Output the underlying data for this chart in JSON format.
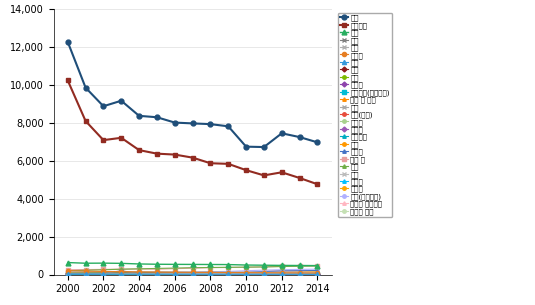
{
  "years": [
    2000,
    2001,
    2002,
    2003,
    2004,
    2005,
    2006,
    2007,
    2008,
    2009,
    2010,
    2011,
    2012,
    2013,
    2014
  ],
  "series": {
    "합계": {
      "values": [
        12268,
        9857,
        8878,
        9168,
        8371,
        8297,
        8015,
        7972,
        7934,
        7818,
        6745,
        6724,
        7450,
        7250,
        6973
      ],
      "color": "#1f4e79",
      "marker": "o",
      "linewidth": 1.5,
      "markersize": 3.5,
      "zorder": 10
    },
    "도로교통": {
      "values": [
        10236,
        8097,
        7090,
        7212,
        6563,
        6376,
        6327,
        6166,
        5870,
        5838,
        5505,
        5229,
        5392,
        5092,
        4762
      ],
      "color": "#922b21",
      "marker": "s",
      "linewidth": 1.5,
      "markersize": 3.5,
      "zorder": 9
    },
    "화재": {
      "values": [
        630,
        595,
        600,
        588,
        556,
        541,
        535,
        532,
        528,
        524,
        500,
        490,
        480,
        475,
        470
      ],
      "color": "#27ae60",
      "marker": "^",
      "linewidth": 1.0,
      "markersize": 3.5,
      "zorder": 8
    },
    "산불": {
      "values": [
        50,
        45,
        48,
        200,
        50,
        45,
        40,
        38,
        35,
        30,
        28,
        25,
        22,
        20,
        18
      ],
      "color": "#808080",
      "marker": "x",
      "linewidth": 0.8,
      "markersize": 3,
      "zorder": 7
    },
    "열차": {
      "values": [
        80,
        75,
        70,
        65,
        62,
        58,
        55,
        52,
        50,
        48,
        45,
        42,
        40,
        38,
        35
      ],
      "color": "#b0b0b0",
      "marker": "x",
      "linewidth": 0.8,
      "markersize": 3,
      "zorder": 7
    },
    "지하철": {
      "values": [
        200,
        180,
        160,
        150,
        140,
        130,
        120,
        115,
        110,
        105,
        100,
        95,
        90,
        85,
        80
      ],
      "color": "#e67e22",
      "marker": "o",
      "linewidth": 0.8,
      "markersize": 3,
      "zorder": 7
    },
    "폭발": {
      "values": [
        30,
        28,
        25,
        22,
        20,
        18,
        16,
        15,
        14,
        12,
        11,
        10,
        9,
        8,
        7
      ],
      "color": "#3498db",
      "marker": "^",
      "linewidth": 0.8,
      "markersize": 3,
      "zorder": 7
    },
    "해양": {
      "values": [
        100,
        90,
        85,
        80,
        75,
        70,
        65,
        60,
        55,
        50,
        48,
        45,
        42,
        40,
        38
      ],
      "color": "#8b1a1a",
      "marker": "D",
      "linewidth": 0.8,
      "markersize": 2.5,
      "zorder": 6
    },
    "가스": {
      "values": [
        90,
        85,
        80,
        75,
        70,
        65,
        60,
        55,
        50,
        48,
        45,
        42,
        40,
        38,
        36
      ],
      "color": "#7dbb00",
      "marker": "o",
      "linewidth": 0.8,
      "markersize": 2.5,
      "zorder": 6
    },
    "유도선": {
      "values": [
        20,
        18,
        16,
        15,
        14,
        13,
        12,
        11,
        10,
        9,
        8,
        8,
        7,
        7,
        6
      ],
      "color": "#8e44ad",
      "marker": "D",
      "linewidth": 0.8,
      "markersize": 2.5,
      "zorder": 6
    },
    "환경오염(기름유출)": {
      "values": [
        15,
        12,
        10,
        8,
        6,
        5,
        4,
        4,
        3,
        3,
        2,
        2,
        2,
        2,
        2
      ],
      "color": "#00bcd4",
      "marker": "s",
      "linewidth": 0.8,
      "markersize": 2.5,
      "zorder": 6
    },
    "공단 내 시설": {
      "values": [
        60,
        55,
        50,
        48,
        45,
        42,
        40,
        38,
        35,
        32,
        30,
        28,
        26,
        24,
        22
      ],
      "color": "#ff8c00",
      "marker": "^",
      "linewidth": 0.8,
      "markersize": 2.5,
      "zorder": 6
    },
    "광산": {
      "values": [
        25,
        22,
        20,
        18,
        16,
        15,
        14,
        13,
        12,
        11,
        10,
        9,
        8,
        7,
        6
      ],
      "color": "#aaaaaa",
      "marker": "x",
      "linewidth": 0.8,
      "markersize": 2.5,
      "zorder": 5
    },
    "전기(감전)": {
      "values": [
        55,
        52,
        50,
        48,
        46,
        44,
        42,
        40,
        38,
        36,
        34,
        32,
        30,
        28,
        26
      ],
      "color": "#e74c3c",
      "marker": "o",
      "linewidth": 0.8,
      "markersize": 2.5,
      "zorder": 5
    },
    "승강기": {
      "values": [
        10,
        9,
        8,
        7,
        7,
        6,
        6,
        5,
        5,
        4,
        4,
        4,
        3,
        3,
        3
      ],
      "color": "#a9d18e",
      "marker": "o",
      "linewidth": 0.8,
      "markersize": 2.5,
      "zorder": 5
    },
    "보일러": {
      "values": [
        8,
        7,
        6,
        6,
        5,
        5,
        5,
        4,
        4,
        4,
        3,
        3,
        3,
        2,
        2
      ],
      "color": "#9b59b6",
      "marker": "D",
      "linewidth": 0.8,
      "markersize": 2.5,
      "zorder": 5
    },
    "헬리콥기": {
      "values": [
        5,
        5,
        4,
        4,
        4,
        4,
        3,
        3,
        3,
        3,
        2,
        2,
        2,
        2,
        2
      ],
      "color": "#00acc1",
      "marker": "^",
      "linewidth": 0.8,
      "markersize": 2.5,
      "zorder": 5
    },
    "붕괴": {
      "values": [
        30,
        28,
        25,
        22,
        20,
        18,
        17,
        15,
        14,
        12,
        11,
        10,
        9,
        8,
        7
      ],
      "color": "#ff9800",
      "marker": "o",
      "linewidth": 0.8,
      "markersize": 2.5,
      "zorder": 5
    },
    "물놀이": {
      "values": [
        120,
        115,
        110,
        105,
        100,
        120,
        115,
        100,
        125,
        110,
        115,
        155,
        190,
        200,
        210
      ],
      "color": "#4472c4",
      "marker": "^",
      "linewidth": 0.8,
      "markersize": 2.5,
      "zorder": 5
    },
    "익사 동": {
      "values": [
        250,
        260,
        270,
        280,
        290,
        280,
        310,
        330,
        360,
        370,
        380,
        400,
        430,
        450,
        460
      ],
      "color": "#e8a0a0",
      "marker": "s",
      "linewidth": 0.8,
      "markersize": 2.5,
      "zorder": 5
    },
    "등산": {
      "values": [
        200,
        220,
        250,
        280,
        300,
        320,
        340,
        360,
        370,
        380,
        390,
        400,
        420,
        440,
        450
      ],
      "color": "#70ad47",
      "marker": "^",
      "linewidth": 0.8,
      "markersize": 2.5,
      "zorder": 5
    },
    "추락": {
      "values": [
        150,
        155,
        160,
        155,
        150,
        145,
        140,
        135,
        130,
        125,
        120,
        115,
        110,
        105,
        100
      ],
      "color": "#bdbdbd",
      "marker": "x",
      "linewidth": 0.8,
      "markersize": 2.5,
      "zorder": 5
    },
    "농기계": {
      "values": [
        80,
        78,
        75,
        72,
        70,
        68,
        65,
        62,
        60,
        58,
        55,
        52,
        50,
        48,
        46
      ],
      "color": "#00bfff",
      "marker": "^",
      "linewidth": 0.8,
      "markersize": 2.5,
      "zorder": 4
    },
    "자전거": {
      "values": [
        30,
        35,
        40,
        50,
        60,
        70,
        80,
        90,
        100,
        110,
        120,
        130,
        135,
        140,
        145
      ],
      "color": "#ffa500",
      "marker": "o",
      "linewidth": 0.8,
      "markersize": 2.5,
      "zorder": 4
    },
    "레저(생활체육)": {
      "values": [
        40,
        45,
        50,
        60,
        80,
        100,
        120,
        140,
        150,
        160,
        200,
        230,
        250,
        270,
        280
      ],
      "color": "#b0b0ff",
      "marker": "o",
      "linewidth": 0.8,
      "markersize": 2.5,
      "zorder": 4
    },
    "어린이 놀이시설": {
      "values": [
        20,
        22,
        25,
        30,
        35,
        50,
        70,
        80,
        90,
        100,
        130,
        160,
        190,
        200,
        210
      ],
      "color": "#ffb6c1",
      "marker": "^",
      "linewidth": 0.8,
      "markersize": 2.5,
      "zorder": 4
    },
    "유원지 시설": {
      "values": [
        10,
        12,
        15,
        18,
        20,
        25,
        30,
        35,
        40,
        45,
        50,
        60,
        70,
        80,
        90
      ],
      "color": "#c5e0b4",
      "marker": "o",
      "linewidth": 0.8,
      "markersize": 2.5,
      "zorder": 4
    }
  },
  "ylim": [
    0,
    14000
  ],
  "yticks": [
    0,
    2000,
    4000,
    6000,
    8000,
    10000,
    12000,
    14000
  ],
  "xticks": [
    2000,
    2002,
    2004,
    2006,
    2008,
    2010,
    2012,
    2014
  ],
  "background_color": "#ffffff",
  "legend_fontsize": 5.0,
  "tick_fontsize": 7,
  "figwidth": 5.35,
  "figheight": 3.05,
  "dpi": 100
}
